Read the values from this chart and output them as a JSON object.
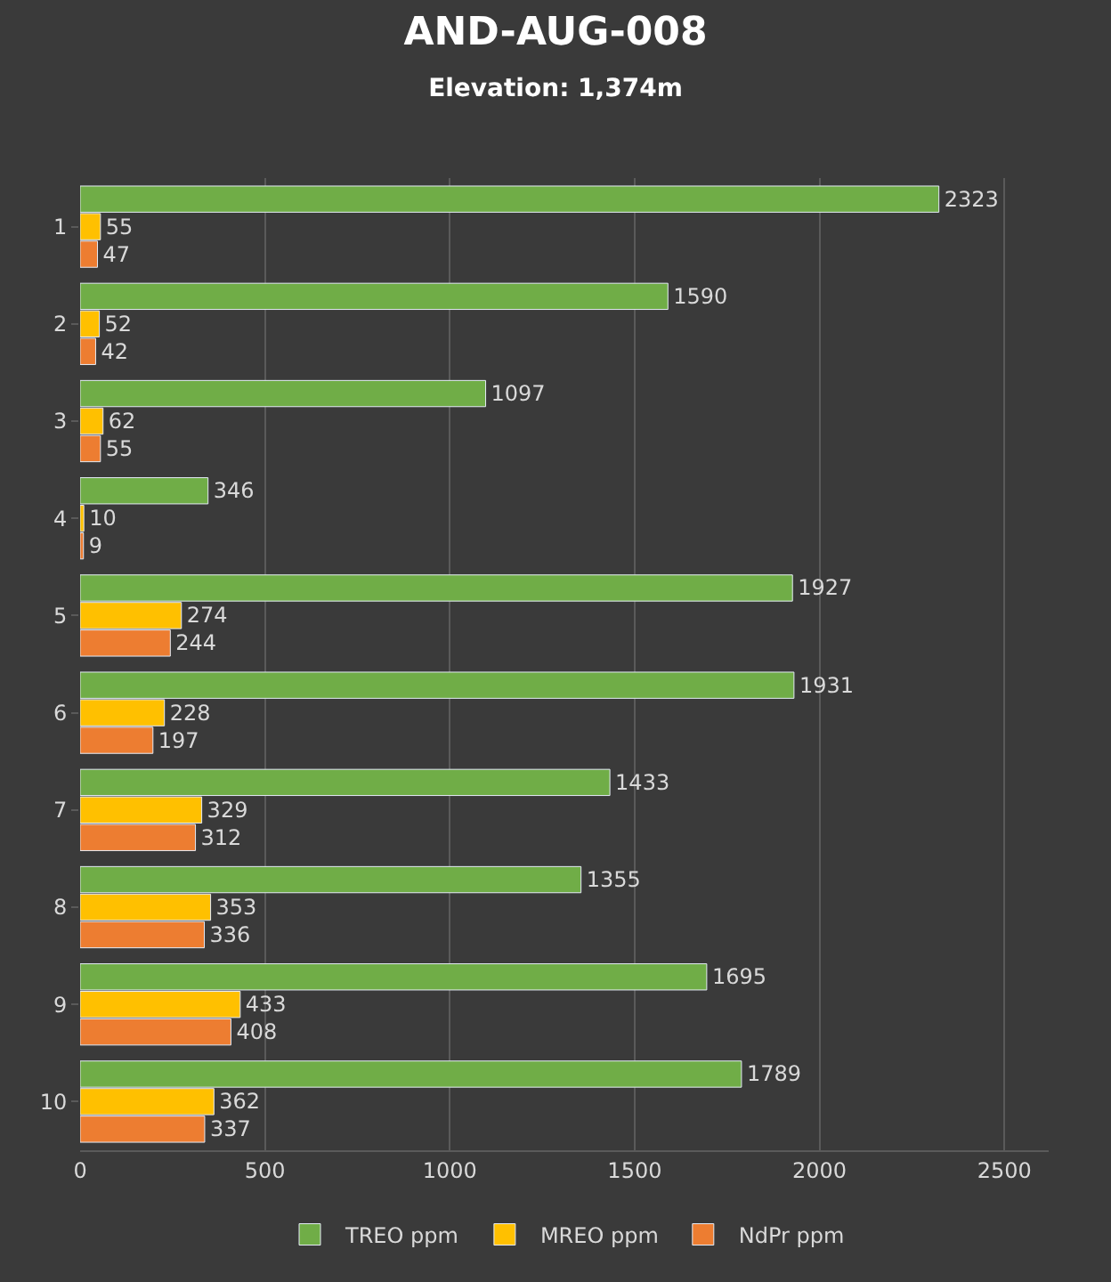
{
  "chart_data": {
    "type": "bar",
    "orientation": "horizontal",
    "title": "AND-AUG-008",
    "subtitle": "Elevation: 1,374m",
    "categories": [
      "1",
      "2",
      "3",
      "4",
      "5",
      "6",
      "7",
      "8",
      "9",
      "10"
    ],
    "series": [
      {
        "name": "TREO ppm",
        "color": "#70ad47",
        "values": [
          2323,
          1590,
          1097,
          346,
          1927,
          1931,
          1433,
          1355,
          1695,
          1789
        ]
      },
      {
        "name": "MREO ppm",
        "color": "#ffc000",
        "values": [
          55,
          52,
          62,
          10,
          274,
          228,
          329,
          353,
          433,
          362
        ]
      },
      {
        "name": "NdPr ppm",
        "color": "#ed7d31",
        "values": [
          47,
          42,
          55,
          9,
          244,
          197,
          312,
          336,
          408,
          337
        ]
      }
    ],
    "xlim": [
      0,
      2620
    ],
    "xticks": [
      0,
      500,
      1000,
      1500,
      2000,
      2500
    ],
    "grid": "x",
    "legend": "bottom",
    "data_labels": true
  }
}
